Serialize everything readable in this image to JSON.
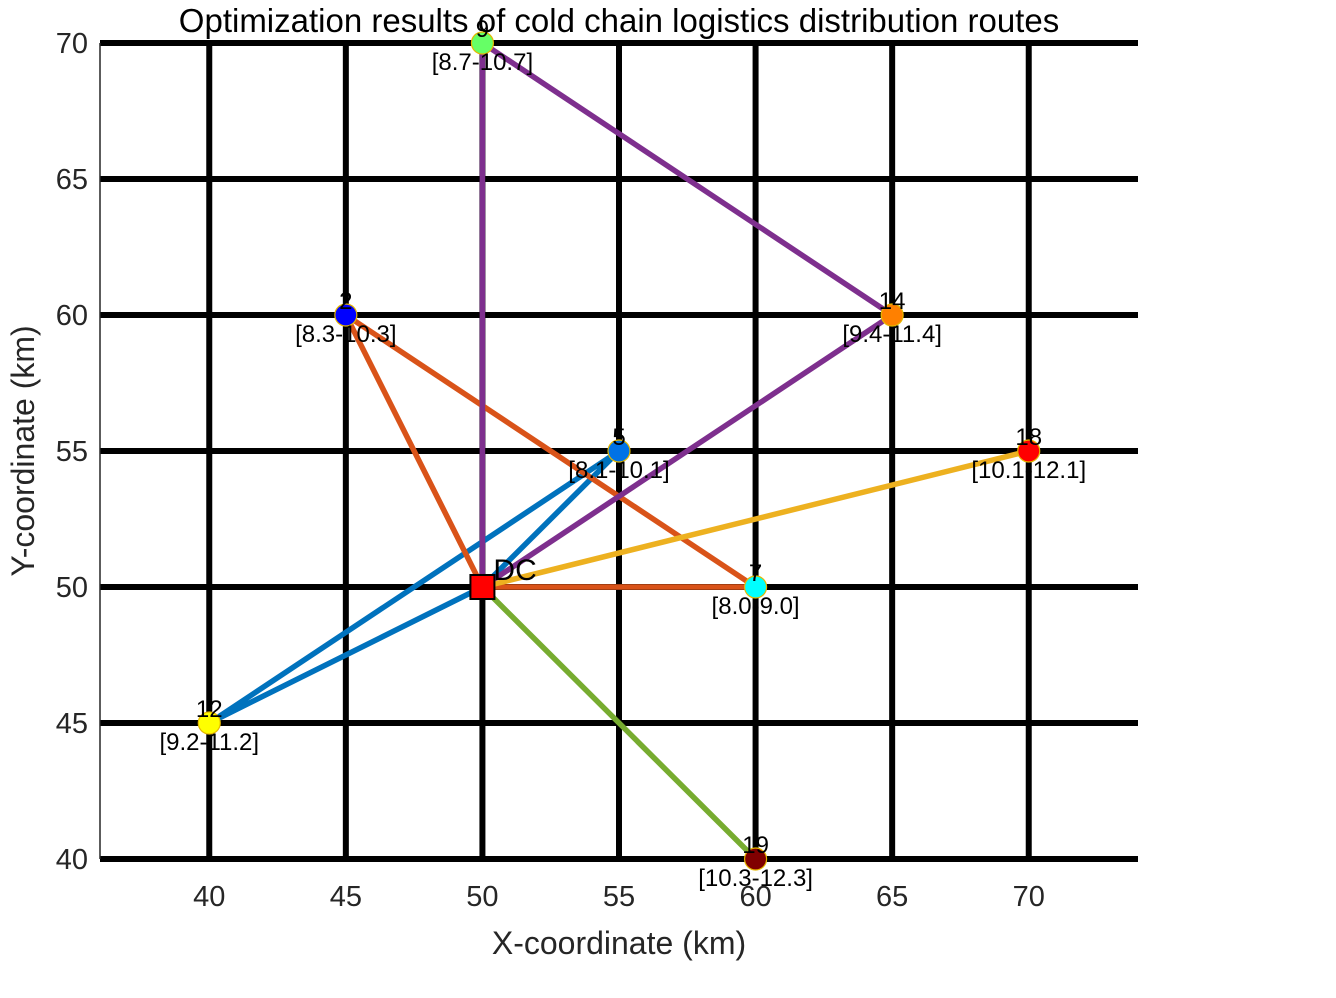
{
  "chart_data": {
    "type": "scatter",
    "title": "Optimization results of cold chain logistics distribution routes",
    "xlabel": "X-coordinate (km)",
    "ylabel": "Y-coordinate (km)",
    "xlim": [
      36,
      74
    ],
    "ylim": [
      40,
      70
    ],
    "xticks": [
      40,
      45,
      50,
      55,
      60,
      65,
      70
    ],
    "yticks": [
      40,
      45,
      50,
      55,
      60,
      65,
      70
    ],
    "grid": true,
    "depot": {
      "label": "DC",
      "x": 50,
      "y": 50,
      "color": "#ff0000"
    },
    "customers": [
      {
        "id": "2",
        "x": 45,
        "y": 60,
        "window": "[8.3-10.3]",
        "color": "#0000ff"
      },
      {
        "id": "5",
        "x": 55,
        "y": 55,
        "window": "[8.1-10.1]",
        "color": "#0072e6"
      },
      {
        "id": "7",
        "x": 60,
        "y": 50,
        "window": "[8.0-9.0]",
        "color": "#00ffff"
      },
      {
        "id": "9",
        "x": 50,
        "y": 70,
        "window": "[8.7-10.7]",
        "color": "#66ff66"
      },
      {
        "id": "12",
        "x": 40,
        "y": 45,
        "window": "[9.2-11.2]",
        "color": "#ffff00"
      },
      {
        "id": "14",
        "x": 65,
        "y": 60,
        "window": "[9.4-11.4]",
        "color": "#ff8000"
      },
      {
        "id": "18",
        "x": 70,
        "y": 55,
        "window": "[10.1-12.1]",
        "color": "#ff0000"
      },
      {
        "id": "19",
        "x": 60,
        "y": 40,
        "window": "[10.3-12.3]",
        "color": "#800000"
      }
    ],
    "routes": [
      {
        "color": "#0072BD",
        "stops": [
          "DC",
          "5",
          "12",
          "DC"
        ]
      },
      {
        "color": "#D95319",
        "stops": [
          "DC",
          "2",
          "7",
          "DC"
        ]
      },
      {
        "color": "#7E2F8E",
        "stops": [
          "DC",
          "14",
          "9",
          "DC"
        ]
      },
      {
        "color": "#EDB120",
        "stops": [
          "DC",
          "18"
        ]
      },
      {
        "color": "#77AC30",
        "stops": [
          "DC",
          "19"
        ]
      }
    ]
  }
}
